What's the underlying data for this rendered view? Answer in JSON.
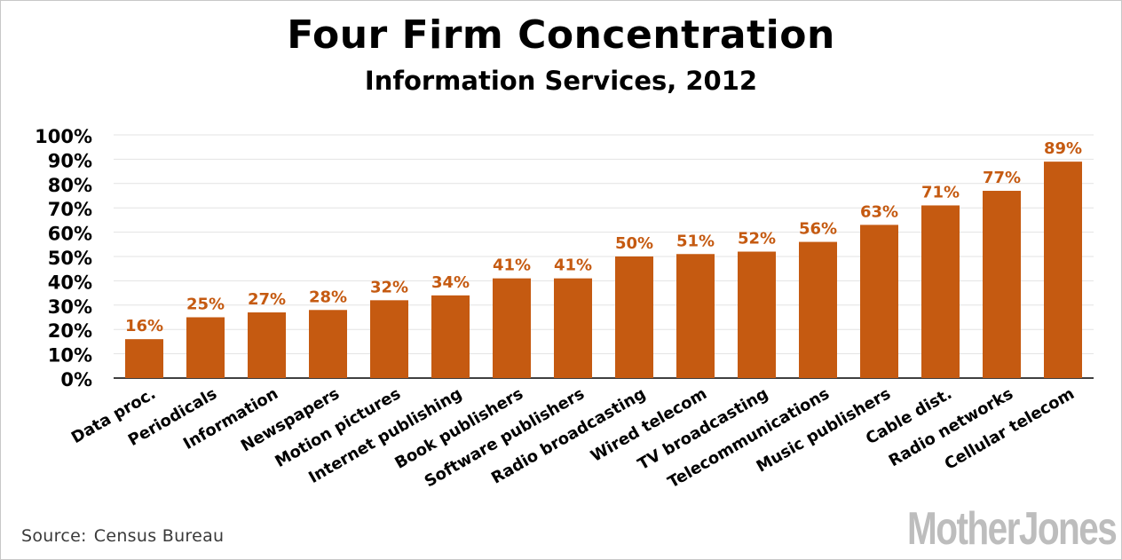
{
  "chart_data": {
    "type": "bar",
    "title": "Four Firm Concentration",
    "subtitle": "Information Services, 2012",
    "categories": [
      "Data proc.",
      "Periodicals",
      "Information",
      "Newspapers",
      "Motion pictures",
      "Internet publishing",
      "Book publishers",
      "Software publishers",
      "Radio broadcasting",
      "Wired telecom",
      "TV broadcasting",
      "Telecommunications",
      "Music publishers",
      "Cable dist.",
      "Radio networks",
      "Cellular telecom"
    ],
    "values": [
      16,
      25,
      27,
      28,
      32,
      34,
      41,
      41,
      50,
      51,
      52,
      56,
      63,
      71,
      77,
      89
    ],
    "value_labels": [
      "16%",
      "25%",
      "27%",
      "28%",
      "32%",
      "34%",
      "41%",
      "41%",
      "50%",
      "51%",
      "52%",
      "56%",
      "63%",
      "71%",
      "77%",
      "89%"
    ],
    "yticks": [
      "0%",
      "10%",
      "20%",
      "30%",
      "40%",
      "50%",
      "60%",
      "70%",
      "80%",
      "90%",
      "100%"
    ],
    "ylim": [
      0,
      100
    ],
    "grid": true,
    "bar_color": "#c55a11",
    "label_color": "#c55a11"
  },
  "source": {
    "label": "Source:",
    "text": "Census Bureau"
  },
  "logo": "MotherJones"
}
